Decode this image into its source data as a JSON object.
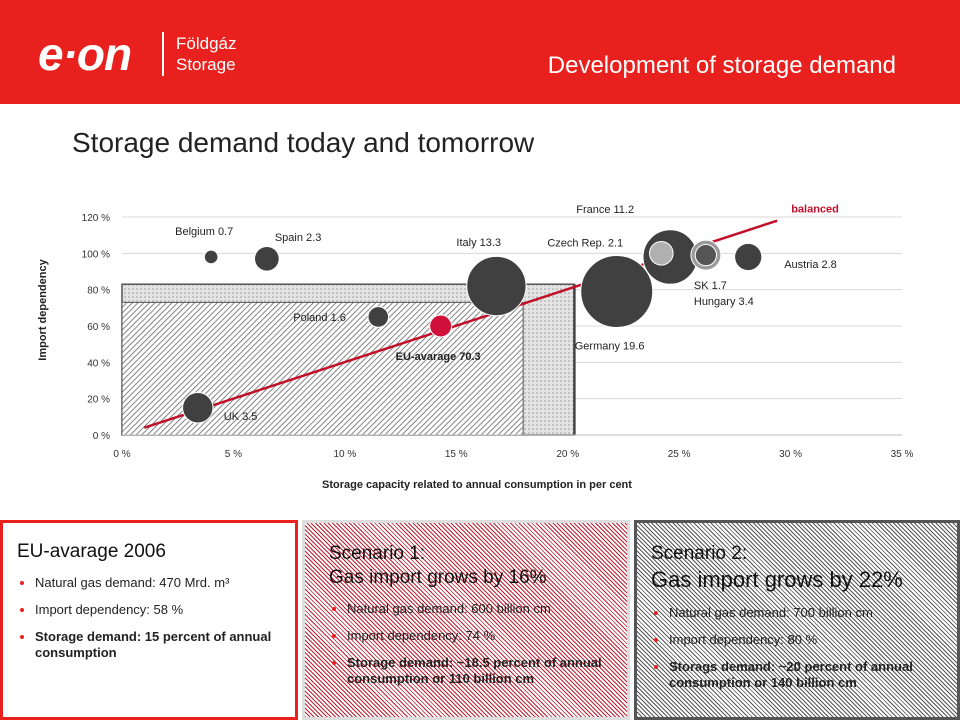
{
  "header": {
    "logo": "e·on",
    "brand_line1": "Földgáz",
    "brand_line2": "Storage",
    "title": "Development of storage demand"
  },
  "page_title": "Storage demand today and tomorrow",
  "colors": {
    "brand_red": "#e8201e",
    "bubble": "#404040",
    "eu_bubble": "#d0103a",
    "trend": "#c0102a"
  },
  "chart_data": {
    "type": "scatter",
    "title": "",
    "xlabel": "Storage capacity related to annual consumption in per cent",
    "ylabel": "Import dependency",
    "xlim": [
      0,
      35
    ],
    "ylim": [
      0,
      120
    ],
    "xticks": [
      "0 %",
      "5 %",
      "10 %",
      "15 %",
      "20 %",
      "25 %",
      "30 %",
      "35 %"
    ],
    "yticks": [
      "0 %",
      "20 %",
      "40 %",
      "60 %",
      "80 %",
      "100 %",
      "120 %"
    ],
    "grid": true,
    "points": [
      {
        "label": "Belgium 0.7",
        "x": 4,
        "y": 98,
        "size": 0.7
      },
      {
        "label": "Spain 2.3",
        "x": 6.5,
        "y": 97,
        "size": 2.3
      },
      {
        "label": "Poland 1.6",
        "x": 11.5,
        "y": 65,
        "size": 1.6
      },
      {
        "label": "Italy 13.3",
        "x": 16.8,
        "y": 82,
        "size": 13.3
      },
      {
        "label": "UK 3.5",
        "x": 3.4,
        "y": 15,
        "size": 3.5
      },
      {
        "label": "EU-avarage 70.3",
        "x": 14.3,
        "y": 60,
        "size": 1.2
      },
      {
        "label": "Germany 19.6",
        "x": 22.2,
        "y": 79,
        "size": 19.6
      },
      {
        "label": "France 11.2",
        "x": 24.6,
        "y": 98,
        "size": 11.2
      },
      {
        "label": "Czech Rep. 2.1",
        "x": 24.2,
        "y": 100,
        "size": 2.1
      },
      {
        "label": "SK 1.7",
        "x": 26.2,
        "y": 99,
        "size": 1.7
      },
      {
        "label": "Hungary 3.4",
        "x": 26.2,
        "y": 99,
        "size": 3.4
      },
      {
        "label": "Austria 2.8",
        "x": 28.1,
        "y": 98,
        "size": 2.8
      }
    ],
    "trend": {
      "label": "balanced",
      "from": [
        1,
        4
      ],
      "to": [
        29.4,
        118
      ]
    },
    "areas": [
      {
        "x": [
          0,
          18
        ],
        "y": [
          0,
          73
        ]
      },
      {
        "x": [
          0,
          20.3
        ],
        "y": [
          0,
          83
        ]
      }
    ]
  },
  "panels": {
    "eu": {
      "title": "EU-avarage 2006",
      "items": [
        "Natural gas demand: 470 Mrd. m³",
        "Import dependency: 58 %",
        "Storage demand: 15 percent of annual consumption"
      ]
    },
    "scenario1": {
      "title": "Scenario 1:",
      "subtitle": "Gas import grows by 16%",
      "items": [
        "Natural gas demand: 600 billion cm",
        "Import dependency: 74 %",
        "Storage demand: ~18.5 percent of annual consumption or 110 billion cm"
      ]
    },
    "scenario2": {
      "title": "Scenario 2:",
      "subtitle": "Gas import grows by 22%",
      "items": [
        "Natural gas demand: 700 billion cm",
        "Import dependency: 80 %",
        "Storags demand: ~20 percent of annual consumption or 140 billion cm"
      ]
    }
  }
}
